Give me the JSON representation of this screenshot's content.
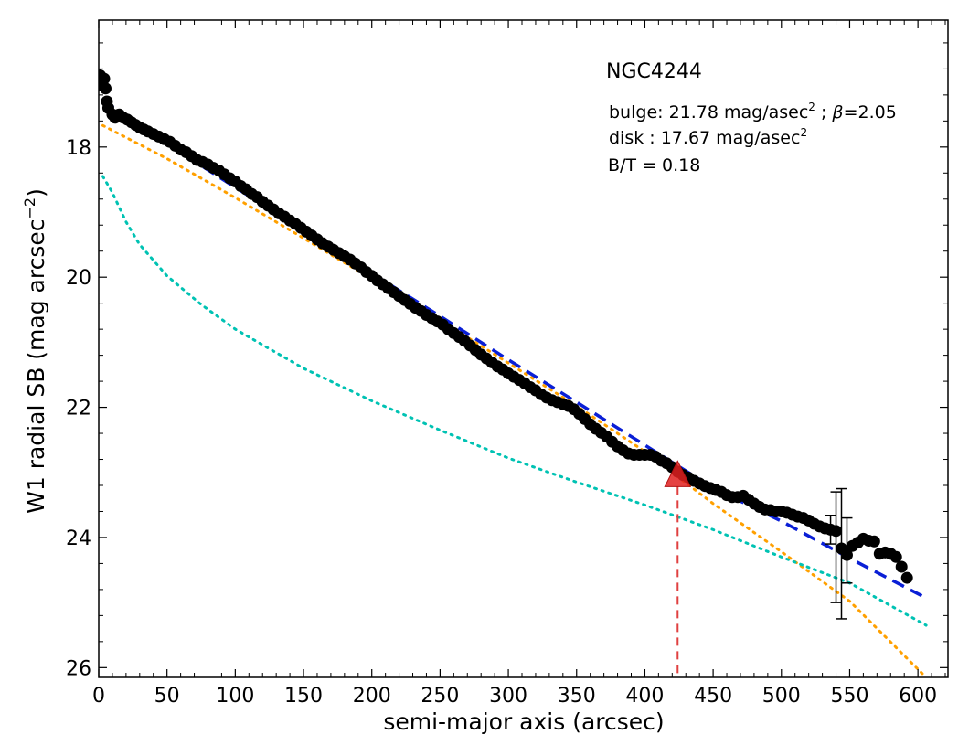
{
  "chart_data": {
    "type": "scatter",
    "xlabel": "semi-major axis (arcsec)",
    "ylabel": "W1 radial SB (mag arcsec",
    "ylabel_sup": "−2",
    "ylabel_close": ")",
    "xlim": [
      0,
      622
    ],
    "ylim": [
      26.15,
      16.05
    ],
    "y_inverted": true,
    "grid": false,
    "xticks": [
      0,
      50,
      100,
      150,
      200,
      250,
      300,
      350,
      400,
      450,
      500,
      550,
      600
    ],
    "yticks": [
      18,
      20,
      22,
      24,
      26
    ],
    "annotations": {
      "galaxy": "NGC4244",
      "bulge_prefix": "bulge: 21.78 mag/asec",
      "bulge_sup": "2",
      "bulge_sep": " ; ",
      "beta_symbol": "β",
      "beta_value": "=2.05",
      "disk_prefix": "disk  : 17.67 mag/asec",
      "disk_sup": "2",
      "bt": "B/T = 0.18"
    },
    "series": [
      {
        "style": "scatter",
        "color": "#000000",
        "points": [
          [
            1,
            16.9
          ],
          [
            2,
            17.05
          ],
          [
            4,
            16.95
          ],
          [
            5,
            17.1
          ],
          [
            6,
            17.3
          ],
          [
            7,
            17.4
          ],
          [
            10,
            17.5
          ],
          [
            12,
            17.55
          ],
          [
            15,
            17.5
          ],
          [
            18,
            17.55
          ],
          [
            21,
            17.58
          ],
          [
            24,
            17.62
          ],
          [
            27,
            17.66
          ],
          [
            30,
            17.7
          ],
          [
            33,
            17.73
          ],
          [
            36,
            17.76
          ],
          [
            40,
            17.8
          ],
          [
            44,
            17.84
          ],
          [
            48,
            17.88
          ],
          [
            52,
            17.92
          ],
          [
            56,
            17.98
          ],
          [
            60,
            18.04
          ],
          [
            64,
            18.08
          ],
          [
            68,
            18.14
          ],
          [
            72,
            18.2
          ],
          [
            76,
            18.23
          ],
          [
            80,
            18.27
          ],
          [
            84,
            18.32
          ],
          [
            88,
            18.36
          ],
          [
            92,
            18.42
          ],
          [
            96,
            18.48
          ],
          [
            100,
            18.53
          ],
          [
            104,
            18.6
          ],
          [
            108,
            18.65
          ],
          [
            112,
            18.72
          ],
          [
            116,
            18.77
          ],
          [
            120,
            18.84
          ],
          [
            124,
            18.9
          ],
          [
            128,
            18.96
          ],
          [
            132,
            19.02
          ],
          [
            136,
            19.07
          ],
          [
            140,
            19.13
          ],
          [
            144,
            19.18
          ],
          [
            148,
            19.24
          ],
          [
            152,
            19.3
          ],
          [
            156,
            19.36
          ],
          [
            160,
            19.42
          ],
          [
            164,
            19.48
          ],
          [
            168,
            19.53
          ],
          [
            172,
            19.58
          ],
          [
            176,
            19.63
          ],
          [
            180,
            19.68
          ],
          [
            184,
            19.73
          ],
          [
            188,
            19.79
          ],
          [
            192,
            19.85
          ],
          [
            196,
            19.92
          ],
          [
            200,
            19.98
          ],
          [
            204,
            20.05
          ],
          [
            208,
            20.11
          ],
          [
            212,
            20.17
          ],
          [
            216,
            20.23
          ],
          [
            220,
            20.29
          ],
          [
            224,
            20.35
          ],
          [
            228,
            20.41
          ],
          [
            232,
            20.47
          ],
          [
            236,
            20.52
          ],
          [
            240,
            20.58
          ],
          [
            244,
            20.63
          ],
          [
            248,
            20.68
          ],
          [
            252,
            20.73
          ],
          [
            256,
            20.8
          ],
          [
            260,
            20.86
          ],
          [
            264,
            20.92
          ],
          [
            268,
            20.98
          ],
          [
            272,
            21.05
          ],
          [
            276,
            21.12
          ],
          [
            280,
            21.19
          ],
          [
            284,
            21.25
          ],
          [
            288,
            21.31
          ],
          [
            292,
            21.37
          ],
          [
            296,
            21.42
          ],
          [
            300,
            21.48
          ],
          [
            304,
            21.53
          ],
          [
            308,
            21.58
          ],
          [
            312,
            21.63
          ],
          [
            316,
            21.69
          ],
          [
            320,
            21.74
          ],
          [
            324,
            21.8
          ],
          [
            328,
            21.85
          ],
          [
            332,
            21.89
          ],
          [
            336,
            21.92
          ],
          [
            340,
            21.95
          ],
          [
            344,
            21.98
          ],
          [
            348,
            22.03
          ],
          [
            352,
            22.1
          ],
          [
            356,
            22.18
          ],
          [
            360,
            22.26
          ],
          [
            364,
            22.33
          ],
          [
            368,
            22.39
          ],
          [
            372,
            22.45
          ],
          [
            376,
            22.53
          ],
          [
            380,
            22.6
          ],
          [
            384,
            22.66
          ],
          [
            388,
            22.71
          ],
          [
            392,
            22.73
          ],
          [
            396,
            22.73
          ],
          [
            400,
            22.73
          ],
          [
            404,
            22.73
          ],
          [
            408,
            22.76
          ],
          [
            412,
            22.82
          ],
          [
            416,
            22.86
          ],
          [
            420,
            22.92
          ],
          [
            424,
            22.99
          ],
          [
            428,
            23.04
          ],
          [
            432,
            23.08
          ],
          [
            436,
            23.13
          ],
          [
            440,
            23.17
          ],
          [
            444,
            23.21
          ],
          [
            448,
            23.24
          ],
          [
            452,
            23.27
          ],
          [
            456,
            23.3
          ],
          [
            460,
            23.35
          ],
          [
            464,
            23.38
          ],
          [
            468,
            23.38
          ],
          [
            472,
            23.36
          ],
          [
            476,
            23.42
          ],
          [
            480,
            23.48
          ],
          [
            484,
            23.53
          ],
          [
            488,
            23.57
          ],
          [
            492,
            23.58
          ],
          [
            496,
            23.6
          ],
          [
            500,
            23.6
          ],
          [
            504,
            23.62
          ],
          [
            508,
            23.65
          ],
          [
            512,
            23.68
          ],
          [
            516,
            23.7
          ],
          [
            520,
            23.74
          ],
          [
            524,
            23.79
          ],
          [
            528,
            23.83
          ],
          [
            532,
            23.86
          ],
          [
            536,
            23.88
          ],
          [
            540,
            23.9
          ],
          [
            544,
            24.17
          ],
          [
            548,
            24.27
          ],
          [
            552,
            24.13
          ],
          [
            556,
            24.08
          ],
          [
            560,
            24.02
          ],
          [
            564,
            24.05
          ],
          [
            568,
            24.06
          ],
          [
            572,
            24.25
          ],
          [
            576,
            24.23
          ],
          [
            580,
            24.25
          ],
          [
            584,
            24.3
          ],
          [
            588,
            24.45
          ],
          [
            592,
            24.62
          ]
        ],
        "error_bars": [
          [
            536,
            23.88,
            0.22
          ],
          [
            540,
            24.15,
            0.85
          ],
          [
            544,
            24.25,
            1.0
          ],
          [
            548,
            24.2,
            0.5
          ]
        ]
      },
      {
        "style": "dashed",
        "color": "#0a1fd6",
        "points": [
          [
            3,
            17.28
          ],
          [
            50,
            17.95
          ],
          [
            100,
            18.62
          ],
          [
            150,
            19.28
          ],
          [
            200,
            19.94
          ],
          [
            250,
            20.6
          ],
          [
            300,
            21.27
          ],
          [
            350,
            21.92
          ],
          [
            400,
            22.58
          ],
          [
            450,
            23.24
          ],
          [
            500,
            23.75
          ],
          [
            550,
            24.32
          ],
          [
            606,
            24.93
          ]
        ]
      },
      {
        "style": "dotted",
        "color": "#ffa000",
        "points": [
          [
            3,
            17.67
          ],
          [
            50,
            18.18
          ],
          [
            100,
            18.78
          ],
          [
            150,
            19.4
          ],
          [
            200,
            20.03
          ],
          [
            250,
            20.66
          ],
          [
            300,
            21.32
          ],
          [
            350,
            21.98
          ],
          [
            400,
            22.68
          ],
          [
            450,
            23.48
          ],
          [
            500,
            24.22
          ],
          [
            550,
            24.98
          ],
          [
            606,
            26.15
          ]
        ]
      },
      {
        "style": "dotted",
        "color": "#00c2b3",
        "points": [
          [
            3,
            18.45
          ],
          [
            10,
            18.7
          ],
          [
            20,
            19.15
          ],
          [
            30,
            19.5
          ],
          [
            50,
            19.98
          ],
          [
            75,
            20.42
          ],
          [
            100,
            20.8
          ],
          [
            150,
            21.4
          ],
          [
            200,
            21.9
          ],
          [
            250,
            22.35
          ],
          [
            300,
            22.78
          ],
          [
            350,
            23.15
          ],
          [
            400,
            23.5
          ],
          [
            450,
            23.88
          ],
          [
            500,
            24.3
          ],
          [
            550,
            24.7
          ],
          [
            606,
            25.35
          ]
        ]
      }
    ],
    "marker": {
      "x": 424,
      "y": 23.05,
      "color": "#e02020",
      "line_color": "#e04040"
    }
  }
}
